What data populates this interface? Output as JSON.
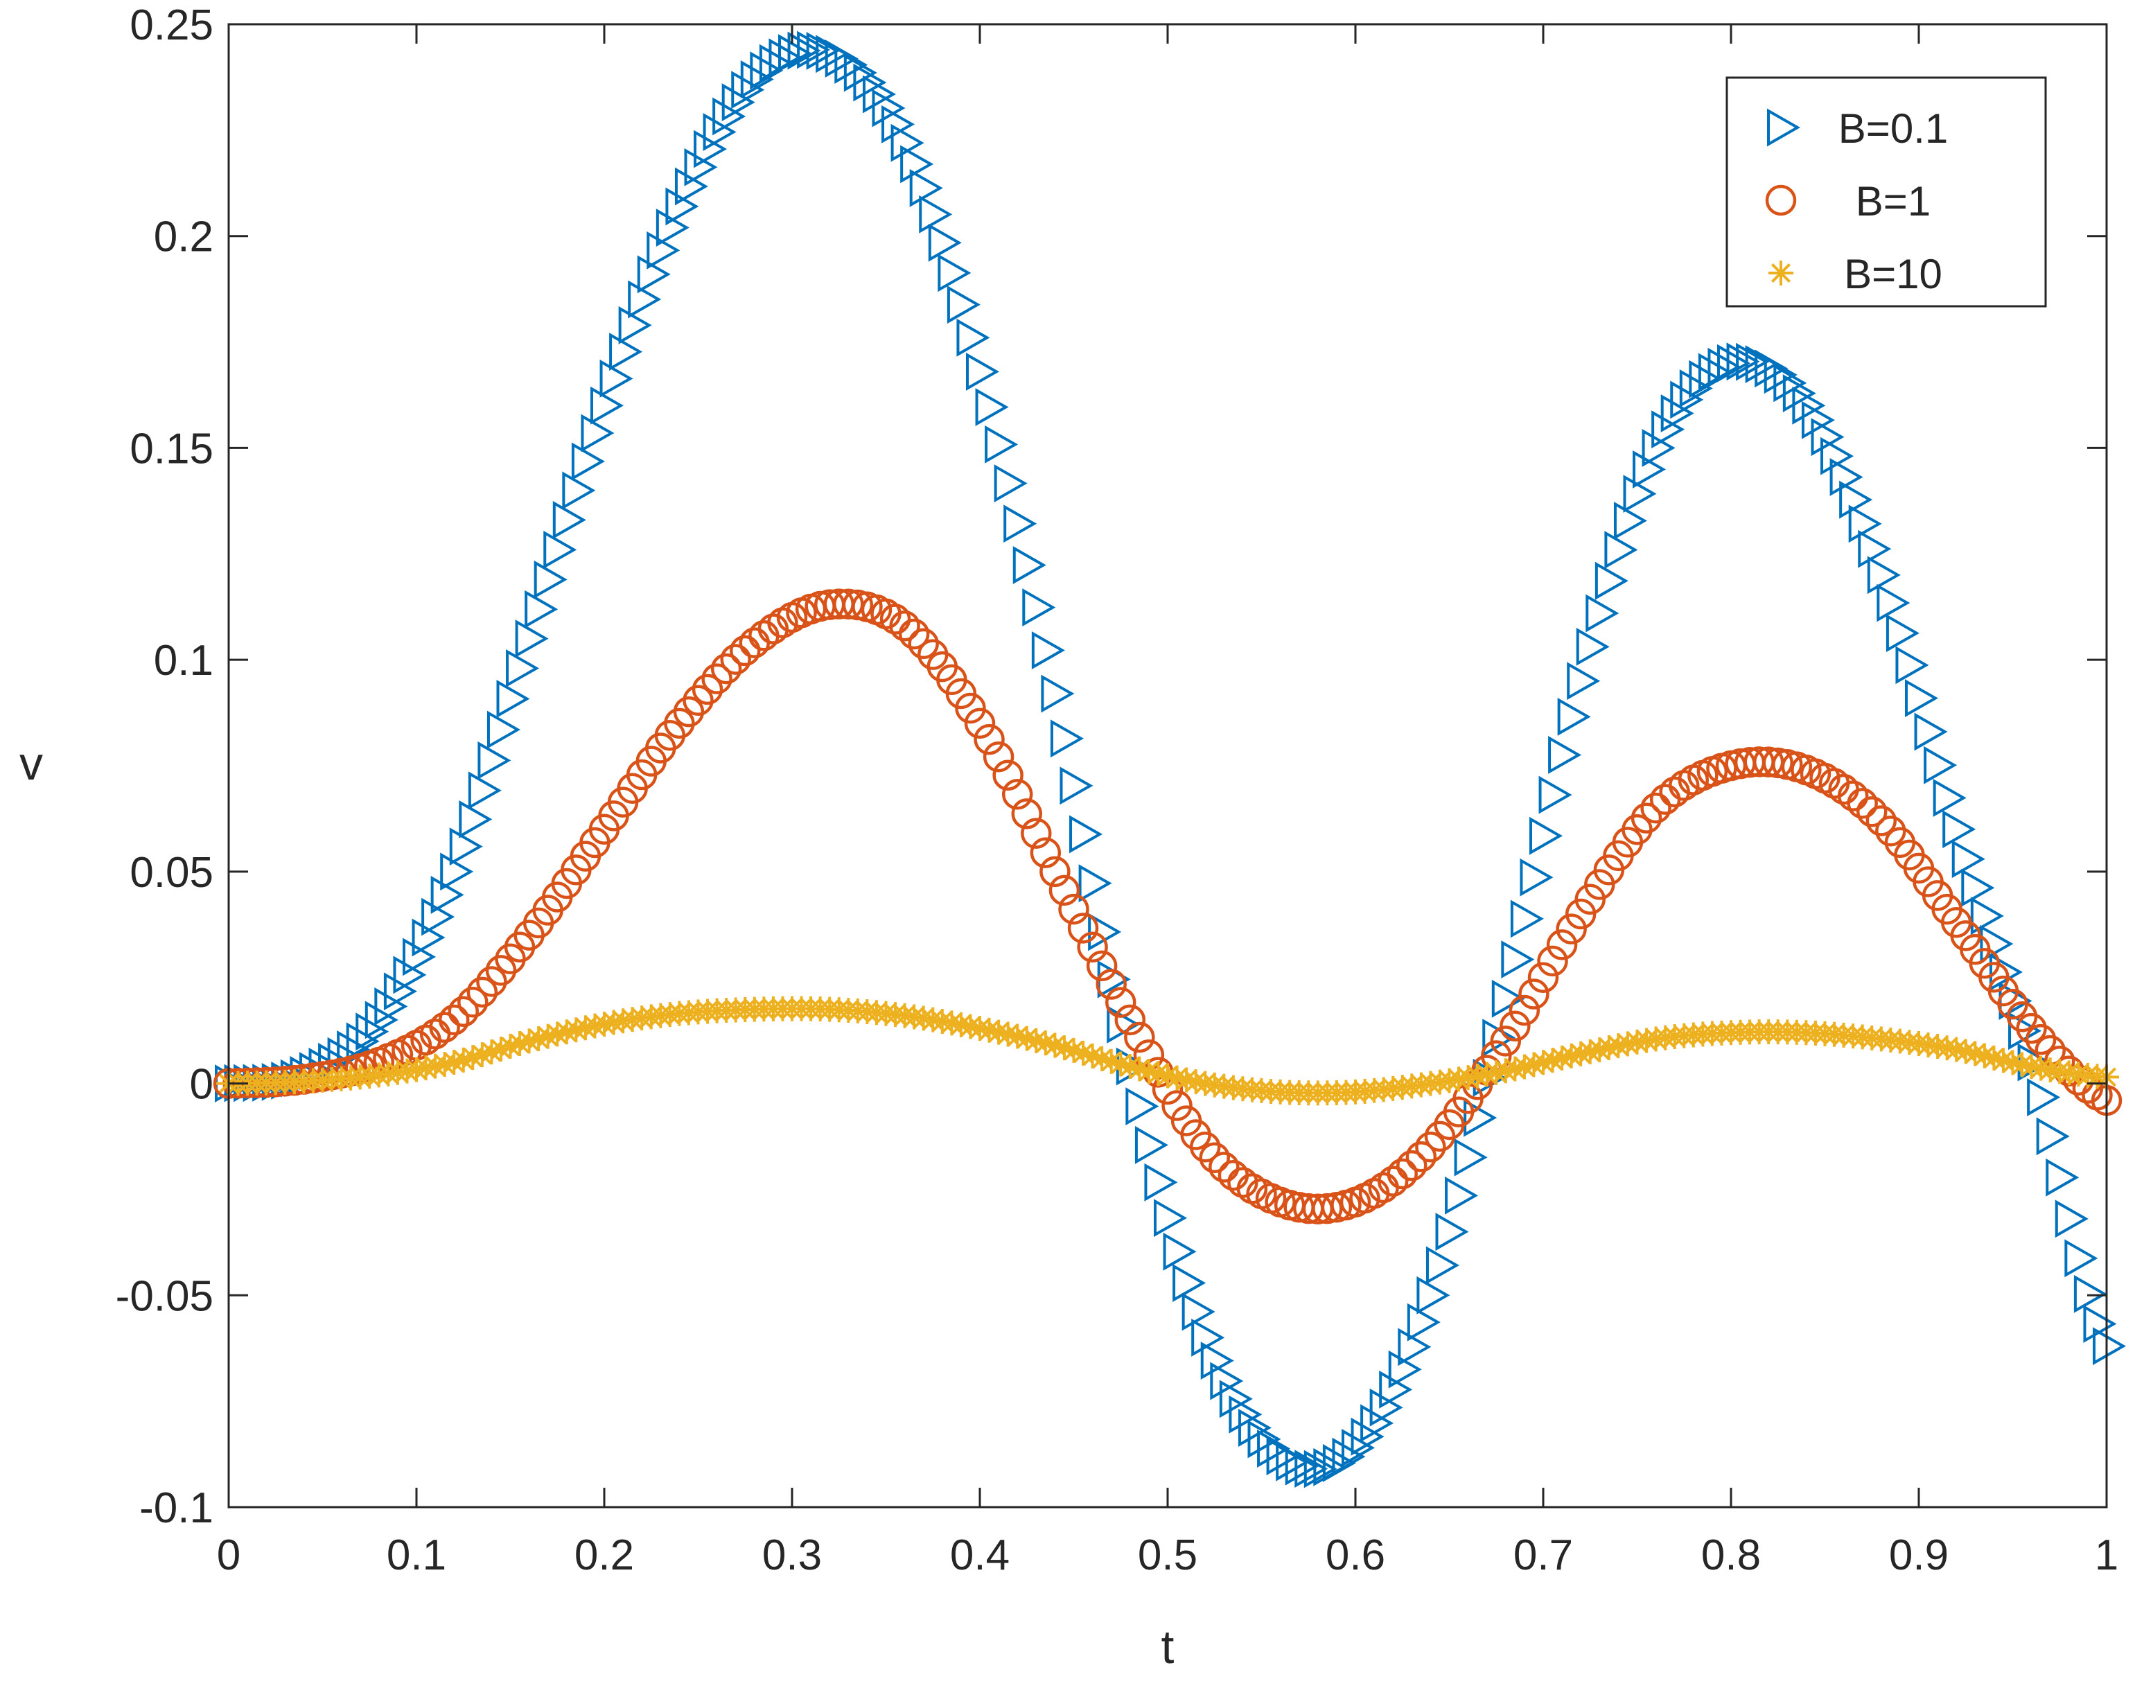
{
  "chart_data": {
    "type": "scatter",
    "title": "",
    "xlabel": "t",
    "ylabel": "v",
    "xlim": [
      0,
      1
    ],
    "ylim": [
      -0.1,
      0.25
    ],
    "xticks": [
      0,
      0.1,
      0.2,
      0.3,
      0.4,
      0.5,
      0.6,
      0.7,
      0.8,
      0.9,
      1
    ],
    "xtick_labels": [
      "0",
      "0.1",
      "0.2",
      "0.3",
      "0.4",
      "0.5",
      "0.6",
      "0.7",
      "0.8",
      "0.9",
      "1"
    ],
    "yticks": [
      -0.1,
      -0.05,
      0,
      0.05,
      0.1,
      0.15,
      0.2,
      0.25
    ],
    "ytick_labels": [
      "-0.1",
      "-0.05",
      "0",
      "0.05",
      "0.1",
      "0.15",
      "0.2",
      "0.25"
    ],
    "grid": false,
    "legend_position": "top-right",
    "x": [
      0,
      0.04,
      0.08,
      0.12,
      0.16,
      0.2,
      0.24,
      0.28,
      0.32,
      0.36,
      0.4,
      0.44,
      0.48,
      0.52,
      0.56,
      0.6,
      0.64,
      0.68,
      0.72,
      0.76,
      0.8,
      0.84,
      0.88,
      0.92,
      0.96,
      1.0
    ],
    "series": [
      {
        "name": "B=0.1",
        "marker": "triangle-right",
        "color": "#0072BD",
        "values": [
          0,
          0.002,
          0.015,
          0.05,
          0.105,
          0.16,
          0.207,
          0.237,
          0.243,
          0.222,
          0.168,
          0.092,
          0.004,
          -0.06,
          -0.088,
          -0.086,
          -0.05,
          0.02,
          0.095,
          0.15,
          0.17,
          0.16,
          0.12,
          0.06,
          0.005,
          -0.062
        ]
      },
      {
        "name": "B=1",
        "marker": "circle",
        "color": "#D95319",
        "values": [
          0,
          0.001,
          0.005,
          0.015,
          0.035,
          0.06,
          0.085,
          0.104,
          0.113,
          0.108,
          0.085,
          0.05,
          0.015,
          -0.015,
          -0.028,
          -0.028,
          -0.015,
          0.01,
          0.04,
          0.065,
          0.075,
          0.074,
          0.062,
          0.038,
          0.013,
          -0.004
        ]
      },
      {
        "name": "B=10",
        "marker": "asterisk",
        "color": "#EDB120",
        "values": [
          0,
          0.0005,
          0.002,
          0.005,
          0.01,
          0.014,
          0.0165,
          0.0175,
          0.0175,
          0.016,
          0.013,
          0.009,
          0.004,
          0.0,
          -0.002,
          -0.002,
          0.0,
          0.003,
          0.007,
          0.0105,
          0.012,
          0.012,
          0.0105,
          0.008,
          0.004,
          0.0015
        ]
      }
    ]
  }
}
